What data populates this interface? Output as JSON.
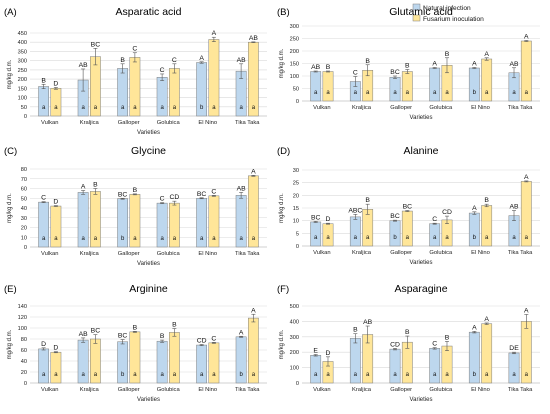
{
  "chart_data": [
    {
      "type": "bar",
      "panel": "(A)",
      "title": "Asparatic acid",
      "xlabel": "Varieties",
      "ylabel": "mg/kg d.m.",
      "ylim": [
        0,
        450
      ],
      "yticks": [
        "0",
        "50",
        "100",
        "150",
        "200",
        "250",
        "300",
        "350",
        "400",
        "450"
      ],
      "categories": [
        "Vulkan",
        "Kraljica",
        "Galloper",
        "Golubica",
        "El Nino",
        "Tika Taka"
      ],
      "series": [
        {
          "name": "Natural infection",
          "values": [
            160,
            195,
            258,
            210,
            290,
            243
          ],
          "errors": [
            12,
            60,
            25,
            18,
            4,
            40
          ],
          "letters": [
            "B",
            "AB",
            "B",
            "C",
            "A",
            "AB"
          ],
          "inner": [
            "a",
            "a",
            "a",
            "a",
            "b",
            "a"
          ]
        },
        {
          "name": "Fusarium inoculation",
          "values": [
            150,
            322,
            318,
            258,
            415,
            400
          ],
          "errors": [
            5,
            45,
            25,
            25,
            12,
            2
          ],
          "letters": [
            "D",
            "BC",
            "C",
            "C",
            "A",
            "AB"
          ],
          "inner": [
            "a",
            "a",
            "a",
            "a",
            "a",
            "a"
          ]
        }
      ],
      "grid": true
    },
    {
      "type": "bar",
      "panel": "(B)",
      "title": "Glutamic acid",
      "xlabel": "Varieties",
      "ylabel": "mg/kg d.m.",
      "ylim": [
        0,
        300
      ],
      "yticks": [
        "0",
        "50",
        "100",
        "150",
        "200",
        "250",
        "300"
      ],
      "categories": [
        "Vulkan",
        "Kraljica",
        "Galloper",
        "Golubica",
        "El Nino",
        "Tika Taka"
      ],
      "series": [
        {
          "name": "Natural infection",
          "values": [
            118,
            78,
            95,
            132,
            132,
            113
          ],
          "errors": [
            2,
            20,
            5,
            2,
            2,
            20
          ],
          "letters": [
            "AB",
            "C",
            "BC",
            "A",
            "A",
            "AB"
          ],
          "inner": [
            "a",
            "a",
            "a",
            "a",
            "b",
            "a"
          ]
        },
        {
          "name": "Fusarium inoculation",
          "values": [
            118,
            123,
            118,
            143,
            168,
            240
          ],
          "errors": [
            2,
            22,
            8,
            30,
            5,
            2
          ],
          "letters": [
            "B",
            "B",
            "B",
            "B",
            "A",
            "A"
          ],
          "inner": [
            "a",
            "a",
            "a",
            "a",
            "a",
            "a"
          ]
        }
      ],
      "grid": true,
      "legend": "top-right"
    },
    {
      "type": "bar",
      "panel": "(C)",
      "title": "Glycine",
      "xlabel": "Varieties",
      "ylabel": "mg/kg d.m.",
      "ylim": [
        0,
        80
      ],
      "yticks": [
        "0",
        "10",
        "20",
        "30",
        "40",
        "50",
        "60",
        "70",
        "80"
      ],
      "categories": [
        "Vulkan",
        "Kraljica",
        "Galloper",
        "Golubica",
        "El Nino",
        "Tika Taka"
      ],
      "series": [
        {
          "name": "Natural infection",
          "values": [
            46,
            56,
            49.5,
            45,
            50,
            53
          ],
          "errors": [
            0.5,
            2,
            0.5,
            0.5,
            0.5,
            3
          ],
          "letters": [
            "C",
            "A",
            "BC",
            "C",
            "BC",
            "AB"
          ],
          "inner": [
            "a",
            "a",
            "b",
            "a",
            "a",
            "a"
          ]
        },
        {
          "name": "Fusarium inoculation",
          "values": [
            42,
            57,
            54,
            45,
            52.5,
            73
          ],
          "errors": [
            0.5,
            3,
            0.5,
            2,
            0.5,
            0.5
          ],
          "letters": [
            "D",
            "B",
            "B",
            "CD",
            "C",
            "A"
          ],
          "inner": [
            "a",
            "a",
            "a",
            "a",
            "a",
            "a"
          ]
        }
      ],
      "grid": true
    },
    {
      "type": "bar",
      "panel": "(D)",
      "title": "Alanine",
      "xlabel": "Varieties",
      "ylabel": "mg/kg d.m.",
      "ylim": [
        0,
        30
      ],
      "yticks": [
        "0",
        "5",
        "10",
        "15",
        "20",
        "25",
        "30"
      ],
      "categories": [
        "Vulkan",
        "Kraljica",
        "Galloper",
        "Golubica",
        "El Nino",
        "Tika Taka"
      ],
      "series": [
        {
          "name": "Natural infection",
          "values": [
            9.5,
            11.5,
            10,
            8.8,
            13,
            12
          ],
          "errors": [
            0.2,
            1,
            0.2,
            0.2,
            0.5,
            2
          ],
          "letters": [
            "BC",
            "ABC",
            "BC",
            "C",
            "A",
            "AB"
          ],
          "inner": [
            "a",
            "a",
            "b",
            "a",
            "b",
            "a"
          ]
        },
        {
          "name": "Fusarium inoculation",
          "values": [
            8.8,
            14.5,
            13.8,
            10.3,
            16,
            25.5
          ],
          "errors": [
            0.2,
            2,
            0.2,
            1.5,
            0.5,
            0.2
          ],
          "letters": [
            "D",
            "B",
            "BC",
            "CD",
            "B",
            "A"
          ],
          "inner": [
            "a",
            "a",
            "a",
            "a",
            "a",
            "a"
          ]
        }
      ],
      "grid": true
    },
    {
      "type": "bar",
      "panel": "(E)",
      "title": "Arginine",
      "xlabel": "Varieties",
      "ylabel": "mg/kg d.m.",
      "ylim": [
        0,
        140
      ],
      "yticks": [
        "0",
        "20",
        "40",
        "60",
        "80",
        "100",
        "120",
        "140"
      ],
      "categories": [
        "Vulkan",
        "Kraljica",
        "Galloper",
        "Golubica",
        "El Nino",
        "Tika Taka"
      ],
      "series": [
        {
          "name": "Natural infection",
          "values": [
            62,
            78,
            75,
            76,
            69,
            84
          ],
          "errors": [
            2,
            4,
            4,
            2,
            1,
            1
          ],
          "letters": [
            "D",
            "AB",
            "BC",
            "B",
            "CD",
            "A"
          ],
          "inner": [
            "a",
            "a",
            "b",
            "a",
            "a",
            "b"
          ]
        },
        {
          "name": "Fusarium inoculation",
          "values": [
            56,
            80,
            93,
            92,
            73,
            118
          ],
          "errors": [
            1,
            8,
            1,
            7,
            1,
            7
          ],
          "letters": [
            "D",
            "BC",
            "B",
            "B",
            "C",
            "A"
          ],
          "inner": [
            "a",
            "a",
            "a",
            "a",
            "a",
            "a"
          ]
        }
      ],
      "grid": true
    },
    {
      "type": "bar",
      "panel": "(F)",
      "title": "Asparagine",
      "xlabel": "Varieties",
      "ylabel": "mg/kg d.m.",
      "ylim": [
        0,
        500
      ],
      "yticks": [
        "0",
        "100",
        "200",
        "300",
        "400",
        "500"
      ],
      "categories": [
        "Vulkan",
        "Kraljica",
        "Galloper",
        "Golubica",
        "El Nino",
        "Tika Taka"
      ],
      "series": [
        {
          "name": "Natural infection",
          "values": [
            180,
            290,
            220,
            225,
            330,
            195
          ],
          "errors": [
            5,
            30,
            5,
            5,
            5,
            5
          ],
          "letters": [
            "E",
            "B",
            "CD",
            "C",
            "A",
            "DE"
          ],
          "inner": [
            "a",
            "a",
            "a",
            "a",
            "b",
            "a"
          ]
        },
        {
          "name": "Fusarium inoculation",
          "values": [
            140,
            315,
            265,
            240,
            385,
            400
          ],
          "errors": [
            30,
            55,
            40,
            30,
            5,
            45
          ],
          "letters": [
            "D",
            "AB",
            "B",
            "B",
            "A",
            "A"
          ],
          "inner": [
            "a",
            "a",
            "a",
            "a",
            "a",
            "a"
          ]
        }
      ],
      "grid": true
    }
  ],
  "legend": {
    "items": [
      {
        "label": "Natural infection",
        "color": "#bdd7ee"
      },
      {
        "label": "Fusarium inoculation",
        "color": "#ffe699"
      }
    ]
  },
  "colors": {
    "series1": "#bdd7ee",
    "series2": "#ffe699",
    "grid": "#d9d9d9",
    "error": "#555555",
    "edge": "#7f7f7f"
  }
}
